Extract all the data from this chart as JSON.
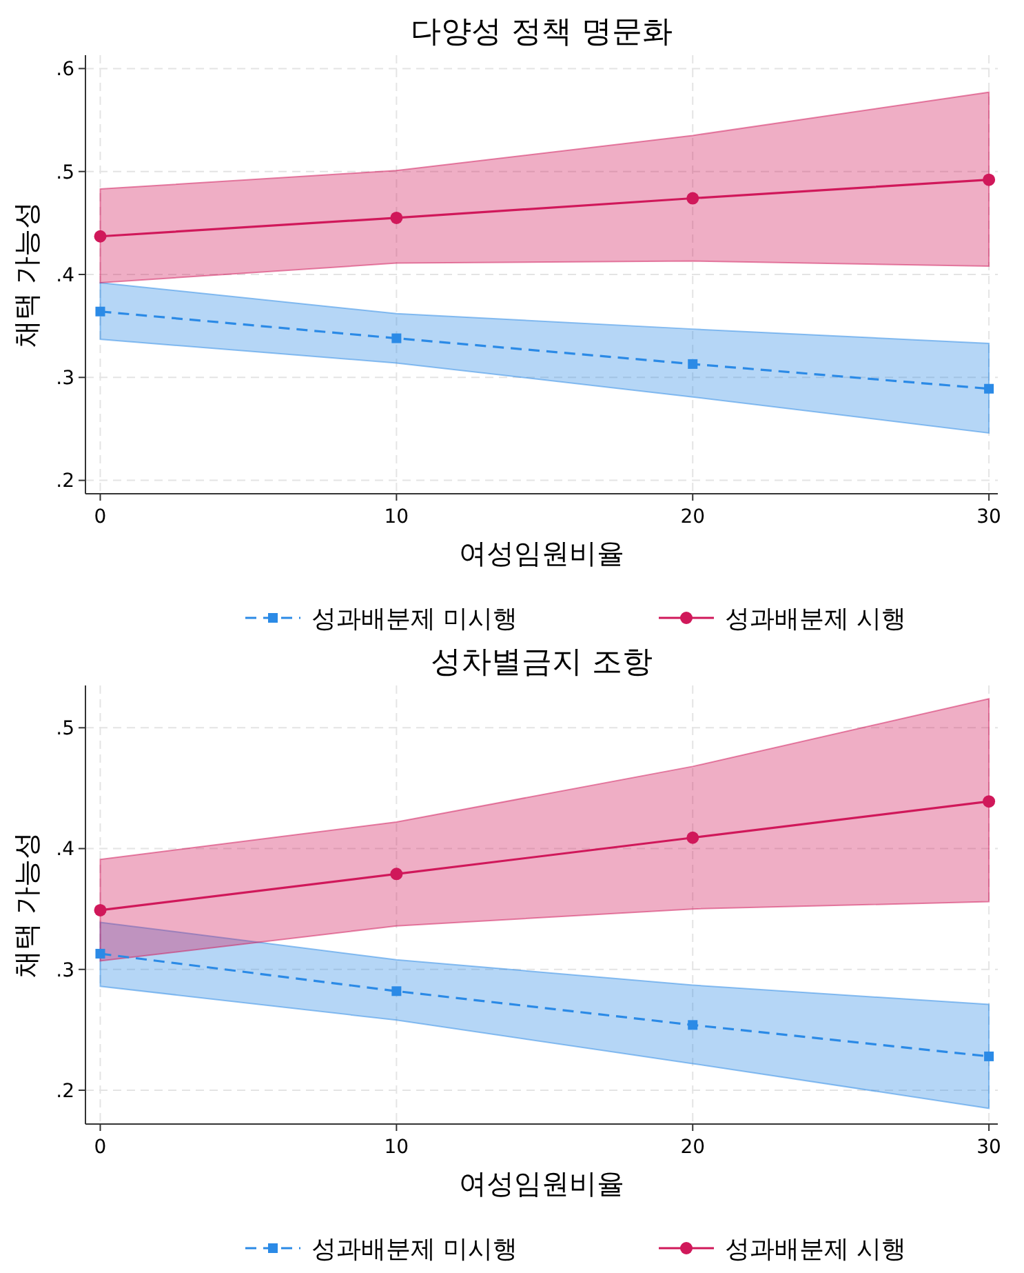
{
  "chart_data": [
    {
      "type": "line",
      "title": "다양성 정책 명문화",
      "xlabel": "여성임원비율",
      "ylabel": "채택 가능성",
      "x": [
        0,
        10,
        20,
        30
      ],
      "xlim": [
        -0.5,
        30.3
      ],
      "xticks": [
        0,
        10,
        20,
        30
      ],
      "ylim": [
        0.187,
        0.613
      ],
      "yticks": [
        {
          "value": 0.2,
          "label": ".2"
        },
        {
          "value": 0.3,
          "label": ".3"
        },
        {
          "value": 0.4,
          "label": ".4"
        },
        {
          "value": 0.5,
          "label": ".5"
        },
        {
          "value": 0.6,
          "label": ".6"
        }
      ],
      "grid": true,
      "legend": "bottom",
      "series": [
        {
          "name": "성과배분제 미시행",
          "color": "#2b8ae6",
          "marker": "square",
          "line_style": "dashed",
          "values": [
            0.364,
            0.338,
            0.313,
            0.289
          ],
          "lower": [
            0.337,
            0.314,
            0.281,
            0.246
          ],
          "upper": [
            0.392,
            0.362,
            0.347,
            0.333
          ]
        },
        {
          "name": "성과배분제 시행",
          "color": "#d0185a",
          "marker": "circle",
          "line_style": "solid",
          "values": [
            0.437,
            0.455,
            0.474,
            0.492
          ],
          "lower": [
            0.392,
            0.411,
            0.413,
            0.408
          ],
          "upper": [
            0.483,
            0.501,
            0.535,
            0.577
          ]
        }
      ]
    },
    {
      "type": "line",
      "title": "성차별금지 조항",
      "xlabel": "여성임원비율",
      "ylabel": "채택 가능성",
      "x": [
        0,
        10,
        20,
        30
      ],
      "xlim": [
        -0.5,
        30.3
      ],
      "xticks": [
        0,
        10,
        20,
        30
      ],
      "ylim": [
        0.172,
        0.535
      ],
      "yticks": [
        {
          "value": 0.2,
          "label": ".2"
        },
        {
          "value": 0.3,
          "label": ".3"
        },
        {
          "value": 0.4,
          "label": ".4"
        },
        {
          "value": 0.5,
          "label": ".5"
        }
      ],
      "grid": true,
      "legend": "bottom",
      "series": [
        {
          "name": "성과배분제 미시행",
          "color": "#2b8ae6",
          "marker": "square",
          "line_style": "dashed",
          "values": [
            0.313,
            0.282,
            0.254,
            0.228
          ],
          "lower": [
            0.286,
            0.258,
            0.222,
            0.185
          ],
          "upper": [
            0.339,
            0.308,
            0.287,
            0.271
          ]
        },
        {
          "name": "성과배분제 시행",
          "color": "#d0185a",
          "marker": "circle",
          "line_style": "solid",
          "values": [
            0.349,
            0.379,
            0.409,
            0.439
          ],
          "lower": [
            0.307,
            0.336,
            0.35,
            0.356
          ],
          "upper": [
            0.391,
            0.422,
            0.468,
            0.524
          ]
        }
      ]
    }
  ]
}
